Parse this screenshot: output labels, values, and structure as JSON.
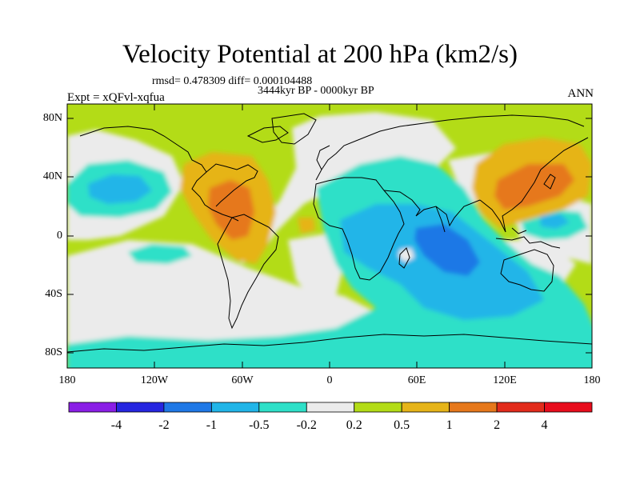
{
  "figure": {
    "title": "Velocity Potential at 200 hPa (km2/s)",
    "stats": "rmsd= 0.478309 diff= 0.000104488",
    "experiment": "Expt = xQFvl-xqfua",
    "period": "3444kyr BP - 0000kyr BP",
    "season": "ANN"
  },
  "map": {
    "projection": "cylindrical equidistant",
    "lon_range": [
      -180,
      180
    ],
    "lat_range": [
      -90,
      90
    ],
    "lat_tick_labels": [
      "80N",
      "40N",
      "0",
      "40S",
      "80S"
    ],
    "lon_tick_labels": [
      "180",
      "120W",
      "60W",
      "0",
      "60E",
      "120E",
      "180"
    ],
    "background_field_level": "0.2 to 0.5",
    "anomaly_regions": [
      {
        "region": "North Pacific (around 160W, 30N)",
        "level": "-1 to -0.5"
      },
      {
        "region": "Central America / Caribbean",
        "level": "1 to 2"
      },
      {
        "region": "North-west Pacific / Japan",
        "level": "1 to 2"
      },
      {
        "region": "Western Indian Ocean / East Africa",
        "level": "-2 to -1"
      },
      {
        "region": "Southern Ocean / Antarctica",
        "level": "-0.5 to -0.2"
      },
      {
        "region": "Eastern Pacific / South Atlantic",
        "level": "-0.2 to 0.2"
      }
    ]
  },
  "colorbar": {
    "labels": [
      "-4",
      "-2",
      "-1",
      "-0.5",
      "-0.2",
      "0.2",
      "0.5",
      "1",
      "2",
      "4"
    ],
    "colors": [
      "#8a1ee6",
      "#2626e0",
      "#1f78e6",
      "#21b5e8",
      "#2ee0c8",
      "#ebebeb",
      "#b3dc17",
      "#e6b419",
      "#e6781b",
      "#e22b1b",
      "#e80c1c"
    ]
  }
}
